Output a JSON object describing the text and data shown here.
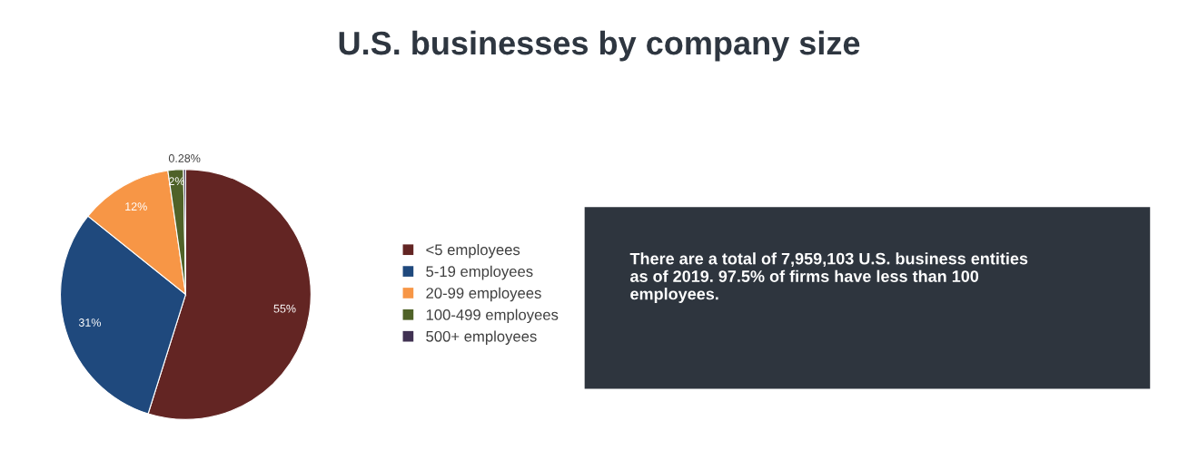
{
  "chart_data": {
    "type": "pie",
    "title": "U.S. businesses by company size",
    "categories": [
      "<5 employees",
      "5-19 employees",
      "20-99 employees",
      "100-499 employees",
      "500+ employees"
    ],
    "values": [
      55,
      31,
      12,
      2,
      0.28
    ],
    "value_labels": [
      "55%",
      "31%",
      "12%",
      "2%",
      "0.28%"
    ],
    "colors": [
      "#632523",
      "#1f497d",
      "#f79646",
      "#4f6228",
      "#403152"
    ],
    "legend": "right",
    "annotations": [
      "There are a total of 7,959,103 U.S. business entities as of 2019. 97.5% of firms have less than 100 employees."
    ]
  }
}
